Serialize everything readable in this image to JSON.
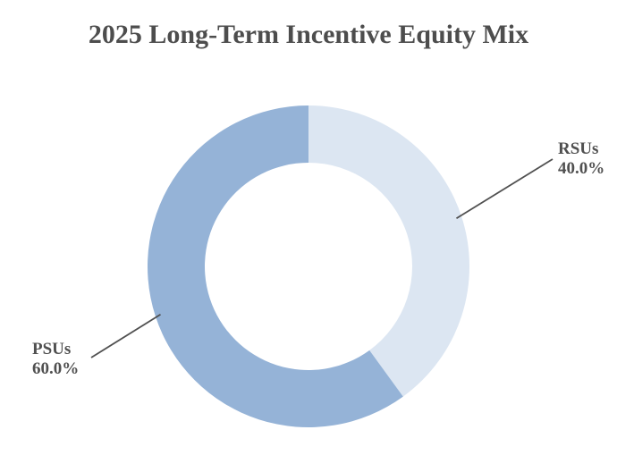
{
  "chart_data": {
    "type": "pie",
    "style": "donut",
    "title": "2025 Long-Term Incentive Equity Mix",
    "slices": [
      {
        "name": "RSUs",
        "value": 40.0,
        "label": "40.0%",
        "color": "#dce6f2"
      },
      {
        "name": "PSUs",
        "value": 60.0,
        "label": "60.0%",
        "color": "#95b3d7"
      }
    ],
    "start_angle": "12 o'clock",
    "direction": "clockwise",
    "legend": "none",
    "label_color": "#505050",
    "leader_line_color": "#505050"
  }
}
